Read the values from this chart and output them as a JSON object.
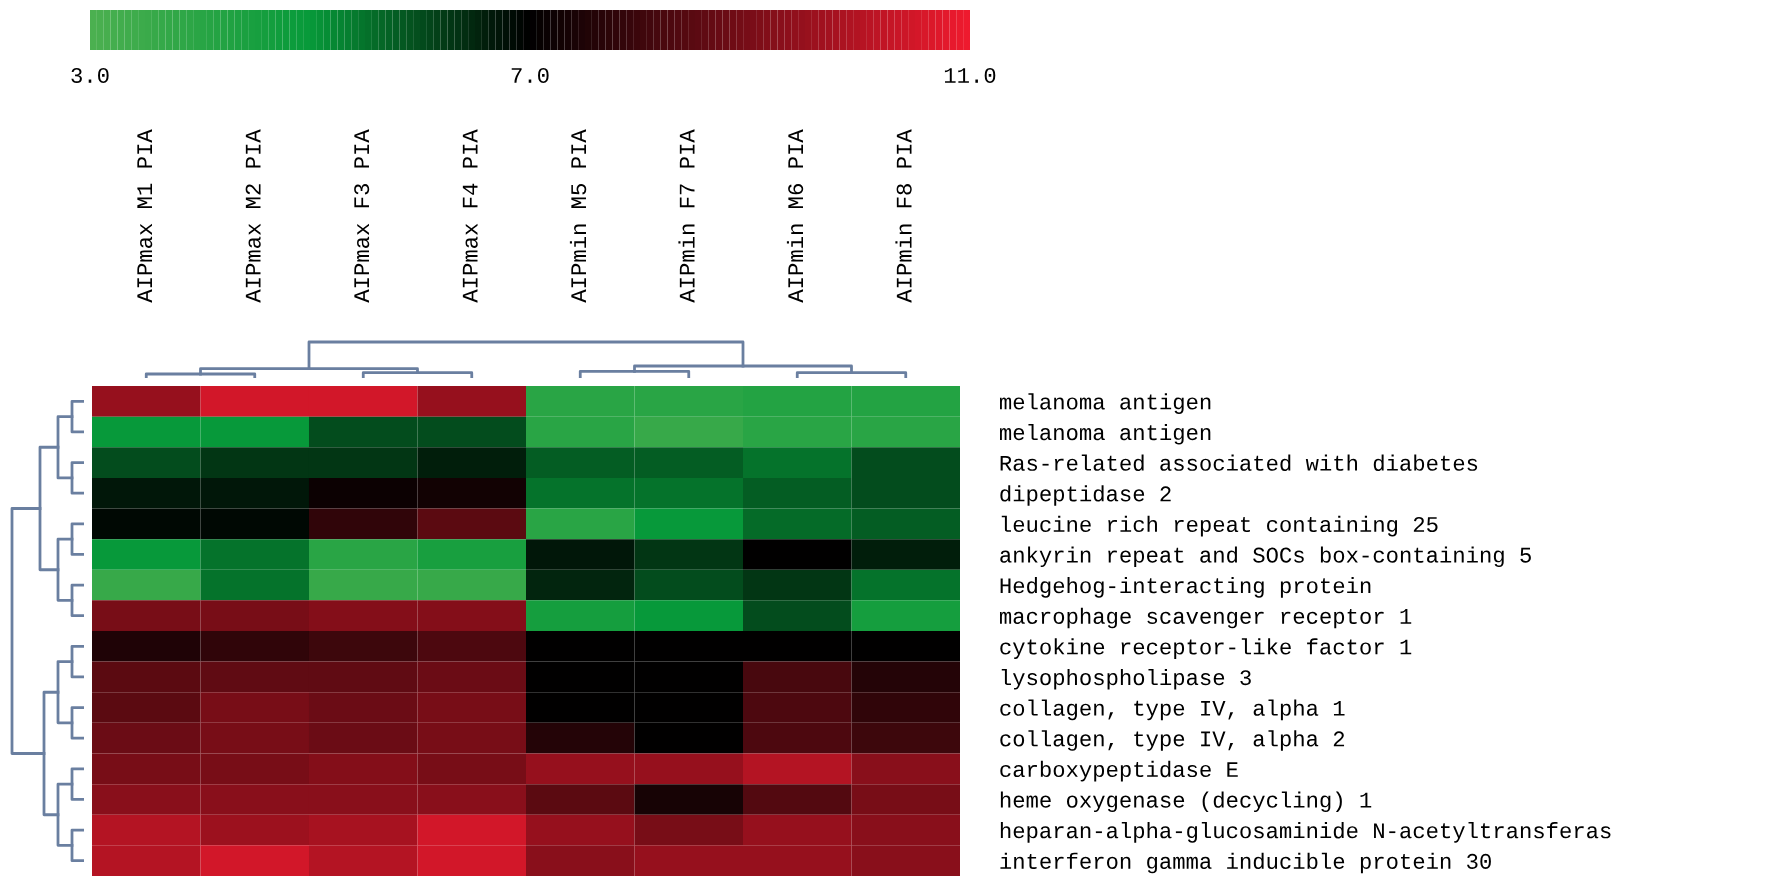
{
  "chart_data": {
    "type": "heatmap",
    "categories": [
      "AIPmax M1 PIA",
      "AIPmax M2 PIA",
      "AIPmax F3 PIA",
      "AIPmax F4 PIA",
      "AIPmin M5 PIA",
      "AIPmin F7 PIA",
      "AIPmin M6 PIA",
      "AIPmin F8 PIA"
    ],
    "y_categories": [
      "melanoma antigen",
      "melanoma antigen",
      "Ras-related associated with diabetes",
      "dipeptidase 2",
      "leucine rich repeat containing 25",
      "ankyrin repeat and SOCs box-containing 5",
      "Hedgehog-interacting protein",
      "macrophage scavenger receptor 1",
      "cytokine receptor-like factor 1",
      "lysophospholipase 3",
      "collagen, type IV, alpha 1",
      "collagen, type IV, alpha 2",
      "carboxypeptidase E",
      "heme oxygenase (decycling) 1",
      "heparan-alpha-glucosaminide N-acetyltransferas",
      "interferon gamma inducible protein 30"
    ],
    "cells": [
      [
        9.5,
        10.5,
        10.5,
        9.5,
        4.0,
        4.0,
        4.2,
        4.2
      ],
      [
        5.0,
        5.0,
        6.0,
        6.0,
        4.0,
        3.6,
        4.0,
        4.0
      ],
      [
        6.0,
        6.3,
        6.3,
        6.6,
        5.8,
        5.8,
        5.5,
        6.0
      ],
      [
        6.7,
        6.7,
        7.2,
        7.3,
        5.5,
        5.5,
        5.8,
        6.0
      ],
      [
        6.9,
        6.9,
        7.8,
        8.5,
        4.0,
        5.0,
        5.6,
        5.8
      ],
      [
        5.0,
        5.5,
        4.0,
        4.5,
        6.7,
        6.3,
        7.0,
        6.6
      ],
      [
        3.6,
        5.5,
        3.6,
        3.6,
        6.5,
        6.0,
        6.3,
        5.5
      ],
      [
        9.0,
        9.0,
        9.2,
        9.2,
        4.6,
        5.0,
        6.0,
        4.6
      ],
      [
        7.5,
        7.8,
        8.0,
        8.3,
        7.0,
        7.0,
        7.0,
        7.0
      ],
      [
        8.5,
        8.6,
        8.6,
        8.8,
        7.0,
        7.0,
        8.2,
        7.6
      ],
      [
        8.5,
        9.0,
        8.8,
        9.0,
        7.0,
        7.0,
        8.3,
        7.8
      ],
      [
        8.8,
        9.0,
        8.8,
        9.0,
        7.6,
        7.0,
        8.3,
        8.0
      ],
      [
        9.0,
        9.0,
        9.2,
        9.0,
        9.5,
        9.5,
        10.0,
        9.3
      ],
      [
        9.3,
        9.3,
        9.3,
        9.3,
        8.5,
        7.4,
        8.4,
        9.0
      ],
      [
        10.0,
        9.6,
        9.8,
        10.5,
        9.5,
        9.0,
        9.5,
        9.3
      ],
      [
        10.0,
        10.5,
        10.0,
        10.5,
        9.3,
        9.5,
        9.5,
        9.3
      ]
    ],
    "clim": [
      3.0,
      11.0
    ],
    "cticks": [
      {
        "value": 3,
        "label": "3.0"
      },
      {
        "value": 7,
        "label": "7.0"
      },
      {
        "value": 11,
        "label": "11.0"
      }
    ]
  }
}
